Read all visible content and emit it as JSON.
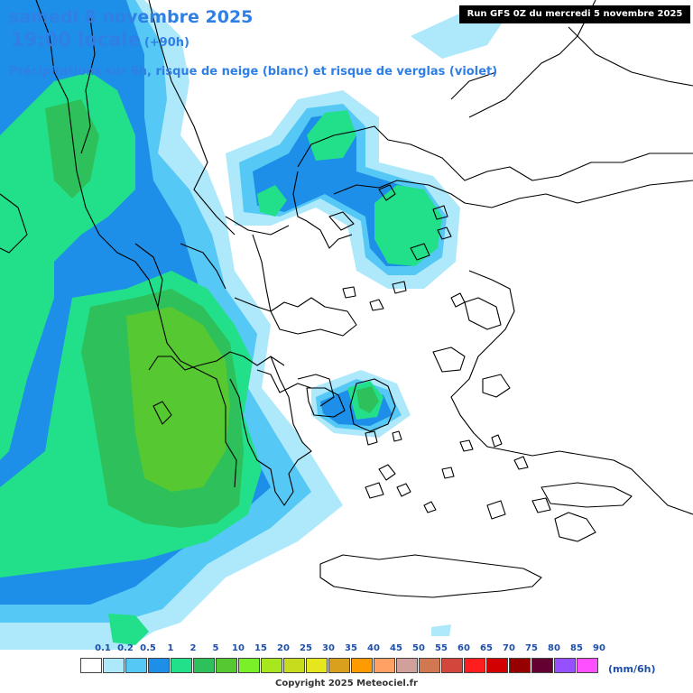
{
  "header": {
    "date_line": "samedi 8 novembre 2025",
    "time_line": "19:00 locale",
    "offset": "(+90h)",
    "subtitle": "Précipitations sur 6h, risque de neige (blanc) et risque de verglas (violet)",
    "run_info": "Run GFS 0Z du mercredi 5 novembre 2025"
  },
  "legend": {
    "ticks": [
      "0.1",
      "0.2",
      "0.5",
      "1",
      "2",
      "5",
      "10",
      "15",
      "20",
      "25",
      "30",
      "35",
      "40",
      "45",
      "50",
      "55",
      "60",
      "65",
      "70",
      "75",
      "80",
      "85",
      "90"
    ],
    "colors": [
      "#ffffff",
      "#aee8fb",
      "#56c8f5",
      "#1e8fe8",
      "#22e08a",
      "#2ec05a",
      "#55c832",
      "#7af028",
      "#a8e61e",
      "#c8dc1e",
      "#e6e61e",
      "#d9a01e",
      "#ff9a00",
      "#ffa064",
      "#d2a09a",
      "#d27850",
      "#d2463c",
      "#ff1e1e",
      "#d20000",
      "#960000",
      "#640032",
      "#9650ff",
      "#ff50ff"
    ],
    "unit": "(mm/6h)"
  },
  "copyright": "Copyright 2025 Meteociel.fr",
  "icons": {
    "map": "precipitation-map"
  }
}
